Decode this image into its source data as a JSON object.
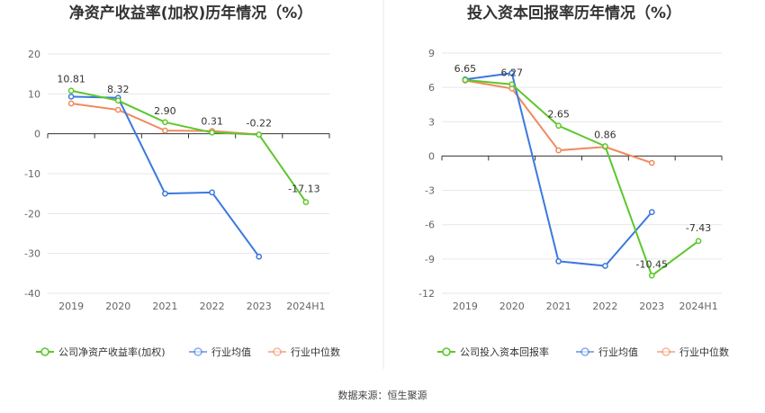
{
  "colors": {
    "company": "#5cc72c",
    "industry_avg": "#3b78e0",
    "industry_median": "#f08a5d",
    "grid": "#e6e6e6",
    "axis": "#333333",
    "divider": "#e8e8e8"
  },
  "source": "数据来源：恒生聚源",
  "chart_data": [
    {
      "type": "line",
      "title": "净资产收益率(加权)历年情况（%）",
      "categories": [
        "2019",
        "2020",
        "2021",
        "2022",
        "2023",
        "2024H1"
      ],
      "ylim": [
        -40,
        20
      ],
      "yticks": [
        20,
        10,
        0,
        -10,
        -20,
        -30,
        -40
      ],
      "grid": true,
      "legend_position": "bottom-left",
      "series": [
        {
          "name": "公司净资产收益率(加权)",
          "color_key": "company",
          "values": [
            10.81,
            8.32,
            2.9,
            0.31,
            -0.22,
            -17.13
          ],
          "labels": [
            "10.81",
            "8.32",
            "2.90",
            "0.31",
            "-0.22",
            "-17.13"
          ]
        },
        {
          "name": "行业均值",
          "color_key": "industry_avg",
          "values": [
            9.3,
            9.0,
            -15.0,
            -14.7,
            -30.8,
            null
          ]
        },
        {
          "name": "行业中位数",
          "color_key": "industry_median",
          "values": [
            7.6,
            6.0,
            0.8,
            0.7,
            -0.2,
            null
          ]
        }
      ]
    },
    {
      "type": "line",
      "title": "投入资本回报率历年情况（%）",
      "categories": [
        "2019",
        "2020",
        "2021",
        "2022",
        "2023",
        "2024H1"
      ],
      "ylim": [
        -12,
        9
      ],
      "yticks": [
        9,
        6,
        3,
        0,
        -3,
        -6,
        -9,
        -12
      ],
      "grid": true,
      "legend_position": "bottom-left",
      "series": [
        {
          "name": "公司投入资本回报率",
          "color_key": "company",
          "values": [
            6.65,
            6.27,
            2.65,
            0.86,
            -10.45,
            -7.43
          ],
          "labels": [
            "6.65",
            "6.27",
            "2.65",
            "0.86",
            "-10.45",
            "-7.43"
          ]
        },
        {
          "name": "行业均值",
          "color_key": "industry_avg",
          "values": [
            6.7,
            7.25,
            -9.2,
            -9.6,
            -4.9,
            null
          ]
        },
        {
          "name": "行业中位数",
          "color_key": "industry_median",
          "values": [
            6.6,
            5.9,
            0.5,
            0.8,
            -0.6,
            null
          ]
        }
      ]
    }
  ]
}
